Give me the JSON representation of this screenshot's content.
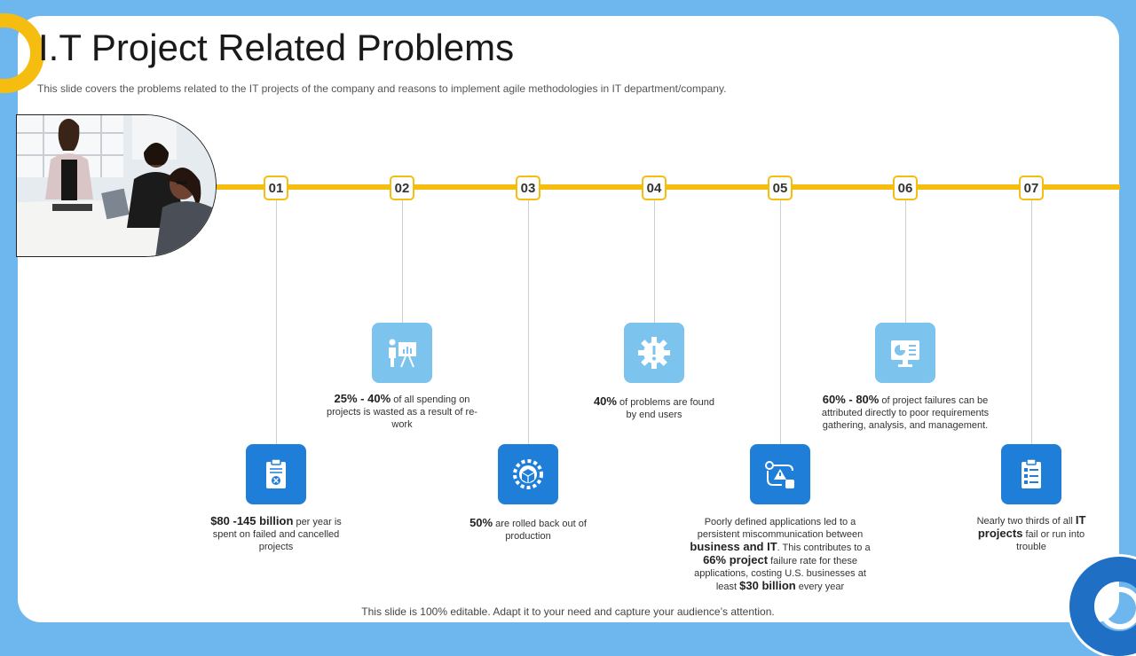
{
  "slide": {
    "title": "I.T Project Related Problems",
    "subtitle": "This slide covers the problems related to the IT projects of the company and reasons to implement agile methodologies in IT department/company.",
    "footer": "This slide is 100% editable. Adapt it to your need and capture your audience’s attention."
  },
  "colors": {
    "background": "#6db6ee",
    "accent": "#f5bd0f",
    "icon_dark": "#1f7fd8",
    "icon_light": "#7cc3ee"
  },
  "steps": [
    {
      "number": "01",
      "icon": "clipboard-x-icon",
      "parts": [
        {
          "t": "$80 -145 billion",
          "b": true
        },
        {
          "t": " per year is spent on failed and cancelled projects",
          "b": false
        }
      ]
    },
    {
      "number": "02",
      "icon": "presentation-icon",
      "parts": [
        {
          "t": "25%  - 40%",
          "b": true
        },
        {
          "t": "  of all spending on projects is wasted as a result of re-work",
          "b": false
        }
      ]
    },
    {
      "number": "03",
      "icon": "gear-box-icon",
      "parts": [
        {
          "t": "50%",
          "b": true
        },
        {
          "t": "  are rolled back out of production",
          "b": false
        }
      ]
    },
    {
      "number": "04",
      "icon": "gear-alert-icon",
      "parts": [
        {
          "t": "40%",
          "b": true
        },
        {
          "t": "  of problems are found by end users",
          "b": false
        }
      ]
    },
    {
      "number": "05",
      "icon": "workflow-icon",
      "parts": [
        {
          "t": "Poorly defined applications led to a persistent miscommunication between ",
          "b": false
        },
        {
          "t": "business  and IT",
          "b": true
        },
        {
          "t": ". This contributes to a ",
          "b": false
        },
        {
          "t": "66%  project",
          "b": true
        },
        {
          "t": "  failure rate for these applications, costing U.S. businesses at least ",
          "b": false
        },
        {
          "t": "$30 billion",
          "b": true
        },
        {
          "t": "  every year",
          "b": false
        }
      ]
    },
    {
      "number": "06",
      "icon": "monitor-chart-icon",
      "parts": [
        {
          "t": "60%  - 80%",
          "b": true
        },
        {
          "t": "  of project failures can be attributed directly to poor requirements gathering, analysis, and management.",
          "b": false
        }
      ]
    },
    {
      "number": "07",
      "icon": "checklist-icon",
      "parts": [
        {
          "t": "Nearly two thirds of all ",
          "b": false
        },
        {
          "t": "IT projects",
          "b": true
        },
        {
          "t": " fail or run into trouble",
          "b": false
        }
      ]
    }
  ]
}
